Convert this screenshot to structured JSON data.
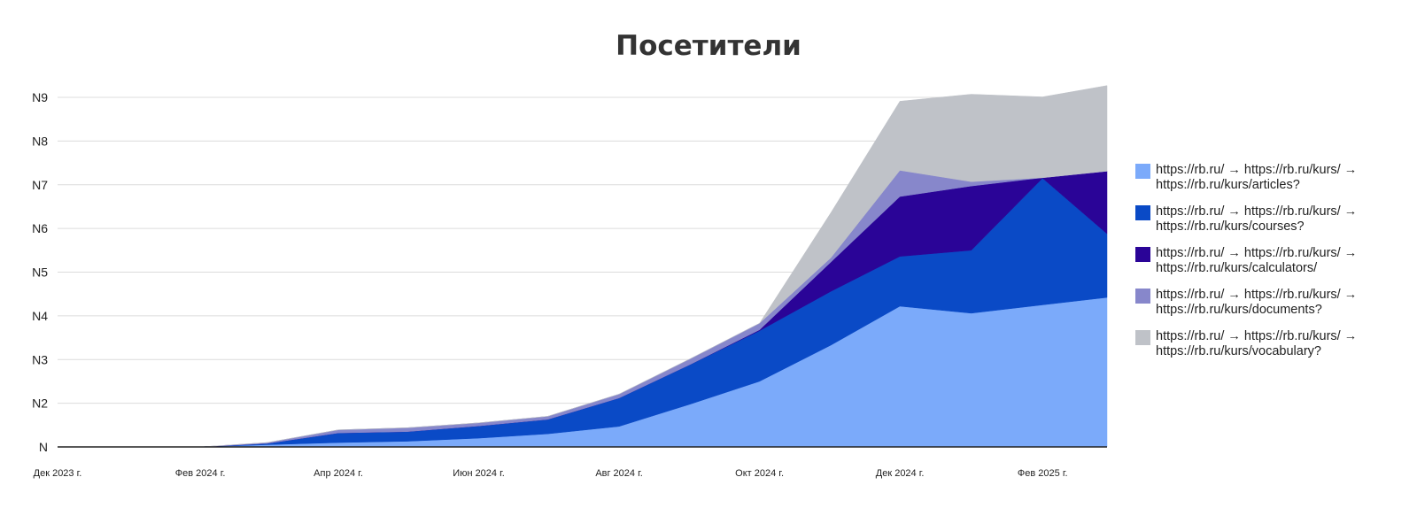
{
  "chart_data": {
    "type": "area",
    "stacked": true,
    "title": "Посетители",
    "xlabel": "",
    "ylabel": "",
    "x": [
      "2023-12-01",
      "2024-01-01",
      "2024-02-01",
      "2024-03-01",
      "2024-04-01",
      "2024-05-01",
      "2024-06-01",
      "2024-07-01",
      "2024-08-01",
      "2024-09-01",
      "2024-10-01",
      "2024-11-01",
      "2024-12-01",
      "2025-01-01",
      "2025-02-01",
      "2025-03-01"
    ],
    "x_tick_labels": [
      "Дек 2023 г.",
      "Фев 2024 г.",
      "Апр 2024 г.",
      "Июн 2024 г.",
      "Авг 2024 г.",
      "Окт 2024 г.",
      "Дек 2024 г.",
      "Фев 2025 г."
    ],
    "x_tick_values": [
      "2023-12-01",
      "2024-02-01",
      "2024-04-01",
      "2024-06-01",
      "2024-08-01",
      "2024-10-01",
      "2024-12-01",
      "2025-02-01"
    ],
    "y_tick_labels": [
      "N",
      "N2",
      "N3",
      "N4",
      "N5",
      "N6",
      "N7",
      "N8",
      "N9"
    ],
    "ylim": [
      0,
      8
    ],
    "grid": true,
    "legend_position": "right",
    "series": [
      {
        "name": "https://rb.ru/ → https://rb.ru/kurs/ → https://rb.ru/kurs/articles?",
        "color": "#7baafa",
        "values": [
          0,
          0,
          0,
          0.05,
          0.1,
          0.13,
          0.2,
          0.3,
          0.47,
          0.98,
          1.5,
          2.33,
          3.22,
          3.06,
          3.25,
          3.42
        ]
      },
      {
        "name": "https://rb.ru/ → https://rb.ru/kurs/ → https://rb.ru/kurs/courses?",
        "color": "#0a4ac6",
        "values": [
          0,
          0,
          0,
          0.03,
          0.22,
          0.22,
          0.28,
          0.33,
          0.65,
          0.91,
          1.16,
          1.23,
          1.14,
          1.44,
          2.9,
          1.46
        ]
      },
      {
        "name": "https://rb.ru/ → https://rb.ru/kurs/ → https://rb.ru/kurs/calculators/",
        "color": "#2a0497",
        "values": [
          0,
          0,
          0,
          0,
          0,
          0,
          0,
          0,
          0,
          0,
          0.02,
          0.67,
          1.37,
          1.47,
          0.01,
          1.43
        ]
      },
      {
        "name": "https://rb.ru/ → https://rb.ru/kurs/ → https://rb.ru/kurs/documents?",
        "color": "#8787cb",
        "values": [
          0,
          0,
          0,
          0.02,
          0.07,
          0.09,
          0.07,
          0.07,
          0.09,
          0.13,
          0.15,
          0.1,
          0.6,
          0.1,
          0,
          0
        ]
      },
      {
        "name": "https://rb.ru/ → https://rb.ru/kurs/ → https://rb.ru/kurs/vocabulary?",
        "color": "#bfc2c8",
        "values": [
          0,
          0,
          0,
          0,
          0,
          0,
          0,
          0,
          0,
          0,
          0,
          1.03,
          1.58,
          2.0,
          1.85,
          1.96
        ]
      }
    ]
  },
  "legend": {
    "items": [
      {
        "line1": "https://rb.ru/ → https://rb.ru/kurs/ →",
        "line2": "https://rb.ru/kurs/articles?",
        "color": "#7baafa"
      },
      {
        "line1": "https://rb.ru/ → https://rb.ru/kurs/ →",
        "line2": "https://rb.ru/kurs/courses?",
        "color": "#0a4ac6"
      },
      {
        "line1": "https://rb.ru/ → https://rb.ru/kurs/ →",
        "line2": "https://rb.ru/kurs/calculators/",
        "color": "#2a0497"
      },
      {
        "line1": "https://rb.ru/ → https://rb.ru/kurs/ →",
        "line2": "https://rb.ru/kurs/documents?",
        "color": "#8787cb"
      },
      {
        "line1": "https://rb.ru/ → https://rb.ru/kurs/ →",
        "line2": "https://rb.ru/kurs/vocabulary?",
        "color": "#bfc2c8"
      }
    ]
  }
}
